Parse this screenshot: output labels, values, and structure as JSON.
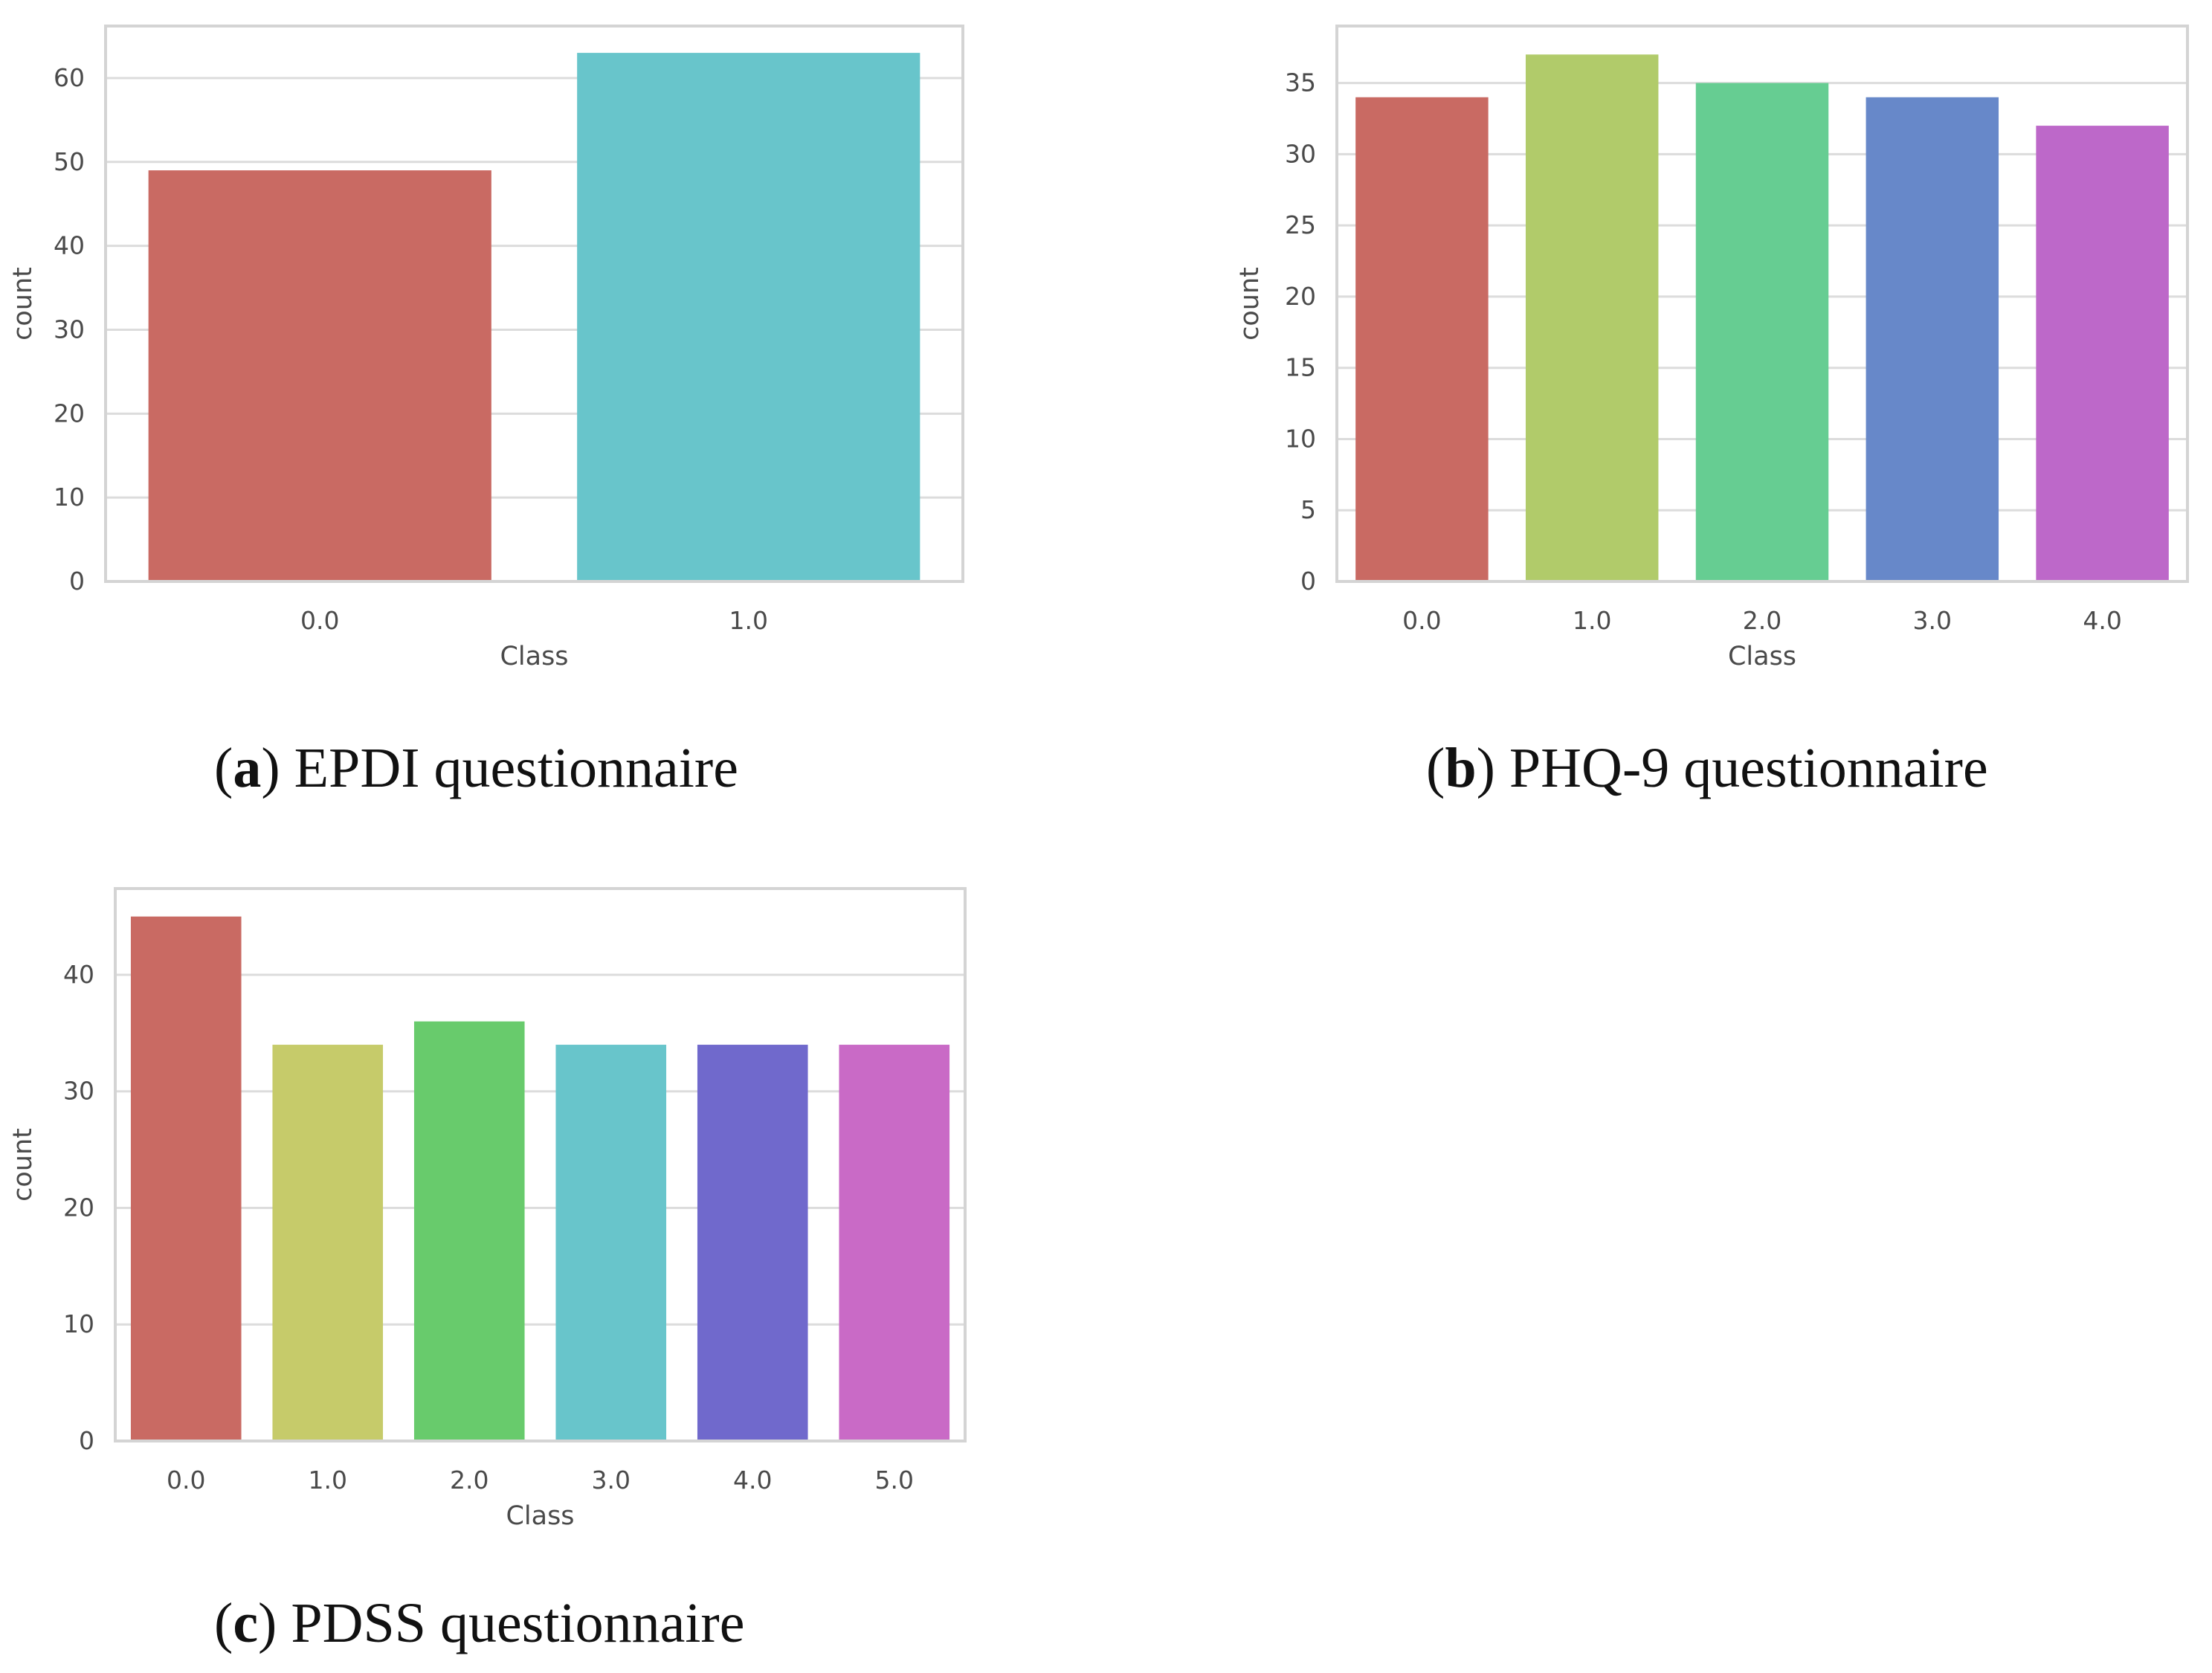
{
  "chart_data": [
    {
      "id": "a",
      "type": "bar",
      "title": "",
      "xlabel": "Class",
      "ylabel": "count",
      "categories": [
        "0.0",
        "1.0"
      ],
      "values": [
        49,
        63
      ],
      "yticks": [
        0,
        10,
        20,
        30,
        40,
        50,
        60
      ],
      "ylim": [
        0,
        66.2
      ],
      "grid": true,
      "colors": [
        "#c96a63",
        "#68c5cb"
      ],
      "caption_letter": "a",
      "caption_text": "EPDI questionnaire"
    },
    {
      "id": "b",
      "type": "bar",
      "title": "",
      "xlabel": "Class",
      "ylabel": "count",
      "categories": [
        "0.0",
        "1.0",
        "2.0",
        "3.0",
        "4.0"
      ],
      "values": [
        34,
        37,
        35,
        34,
        32
      ],
      "yticks": [
        0,
        5,
        10,
        15,
        20,
        25,
        30,
        35
      ],
      "ylim": [
        0,
        39
      ],
      "grid": true,
      "colors": [
        "#c96a63",
        "#b1cb6a",
        "#66cd92",
        "#6788c9",
        "#bd68c9"
      ],
      "caption_letter": "b",
      "caption_text": "PHQ-9 questionnaire"
    },
    {
      "id": "c",
      "type": "bar",
      "title": "",
      "xlabel": "Class",
      "ylabel": "count",
      "categories": [
        "0.0",
        "1.0",
        "2.0",
        "3.0",
        "4.0",
        "5.0"
      ],
      "values": [
        45,
        34,
        36,
        34,
        34,
        34
      ],
      "yticks": [
        0,
        10,
        20,
        30,
        40
      ],
      "ylim": [
        0,
        47.4
      ],
      "grid": true,
      "colors": [
        "#c96a63",
        "#c6cb6a",
        "#68cb6c",
        "#68c5cb",
        "#7069cc",
        "#c96ac6"
      ],
      "caption_letter": "c",
      "caption_text": "PDSS questionnaire"
    }
  ],
  "style": {
    "grid_color": "#dcdcdc",
    "frame_color": "#d4d4d4",
    "text_color": "#4a4a4a"
  }
}
